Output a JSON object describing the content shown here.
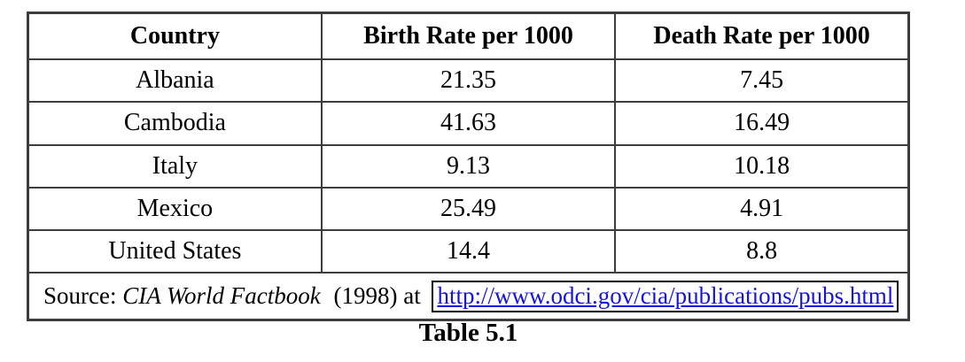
{
  "colors": {
    "background": "#ffffff",
    "table_border": "#3d3d3d",
    "text": "#000000",
    "link_text": "#1414e0",
    "link_box_border": "#000000"
  },
  "table": {
    "headers": [
      "Country",
      "Birth Rate per 1000",
      "Death Rate per 1000"
    ],
    "rows": [
      {
        "country": "Albania",
        "birth_rate": "21.35",
        "death_rate": "7.45"
      },
      {
        "country": "Cambodia",
        "birth_rate": "41.63",
        "death_rate": "16.49"
      },
      {
        "country": "Italy",
        "birth_rate": "9.13",
        "death_rate": "10.18"
      },
      {
        "country": "Mexico",
        "birth_rate": "25.49",
        "death_rate": "4.91"
      },
      {
        "country": "United States",
        "birth_rate": "14.4",
        "death_rate": "8.8"
      }
    ],
    "source": {
      "prefix": "Source:",
      "publication": "CIA World Factbook",
      "middle": "(1998) at",
      "link_text": "http://www.odci.gov/cia/publications/pubs.html"
    },
    "caption": "Table 5.1"
  }
}
